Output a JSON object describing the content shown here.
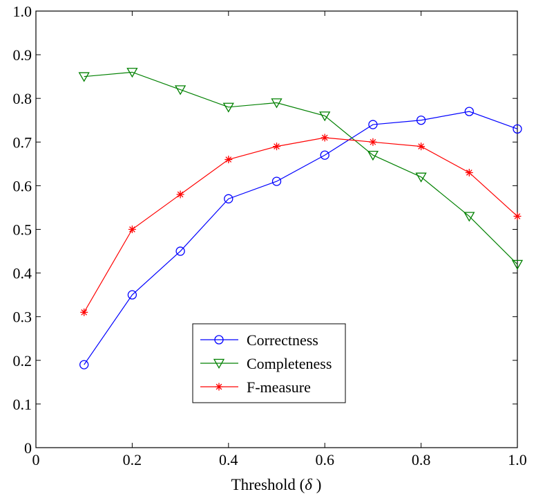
{
  "chart_data": {
    "type": "line",
    "title": "",
    "xlabel": "Threshold",
    "xlabel_symbol": "δ",
    "ylabel": "",
    "xlim": [
      0,
      1.0
    ],
    "ylim": [
      0,
      1.0
    ],
    "x_ticks": [
      "0",
      "0.2",
      "0.4",
      "0.6",
      "0.8",
      "1.0"
    ],
    "y_ticks": [
      "0",
      "0.1",
      "0.2",
      "0.3",
      "0.4",
      "0.5",
      "0.6",
      "0.7",
      "0.8",
      "0.9",
      "1.0"
    ],
    "grid": false,
    "legend_position": "bottom-center",
    "x": [
      0.1,
      0.2,
      0.3,
      0.4,
      0.5,
      0.6,
      0.7,
      0.8,
      0.9,
      1.0
    ],
    "series": [
      {
        "name": "Correctness",
        "color": "#0000ff",
        "marker": "circle",
        "values": [
          0.19,
          0.35,
          0.45,
          0.57,
          0.61,
          0.67,
          0.74,
          0.75,
          0.77,
          0.73
        ]
      },
      {
        "name": "Completeness",
        "color": "#008000",
        "marker": "triangle-down",
        "values": [
          0.85,
          0.86,
          0.82,
          0.78,
          0.79,
          0.76,
          0.67,
          0.62,
          0.53,
          0.42
        ]
      },
      {
        "name": "F-measure",
        "color": "#ff0000",
        "marker": "asterisk",
        "values": [
          0.31,
          0.5,
          0.58,
          0.66,
          0.69,
          0.71,
          0.7,
          0.69,
          0.63,
          0.53
        ]
      }
    ]
  }
}
